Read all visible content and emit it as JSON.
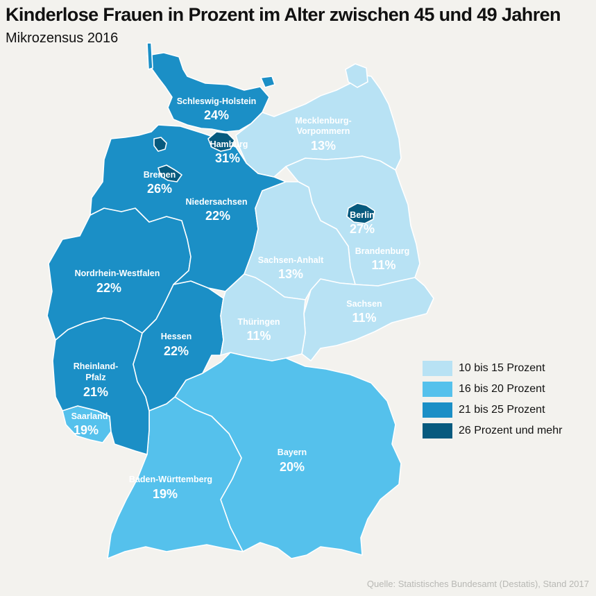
{
  "title": "Kinderlose Frauen in Prozent im Alter zwischen 45 und 49 Jahren",
  "subtitle": "Mikrozensus 2016",
  "source": "Quelle: Statistisches Bundesamt (Destatis), Stand 2017",
  "colors": {
    "cls1": "#b8e2f4",
    "cls2": "#55c1ec",
    "cls3": "#1b8fc6",
    "cls4": "#075a7e",
    "background": "#f3f2ee",
    "border": "#ffffff"
  },
  "legend": [
    {
      "label": "10 bis 15 Prozent",
      "color": "#b8e2f4"
    },
    {
      "label": "16 bis 20 Prozent",
      "color": "#55c1ec"
    },
    {
      "label": "21 bis 25 Prozent",
      "color": "#1b8fc6"
    },
    {
      "label": "26 Prozent und mehr",
      "color": "#075a7e"
    }
  ],
  "states": {
    "schleswig_holstein": {
      "name": "Schleswig-Holstein",
      "value": "24%",
      "percent": 24
    },
    "hamburg": {
      "name": "Hamburg",
      "value": "31%",
      "percent": 31
    },
    "mecklenburg_vorpommern": {
      "name_line1": "Mecklenburg-",
      "name_line2": "Vorpommern",
      "value": "13%",
      "percent": 13
    },
    "bremen": {
      "name": "Bremen",
      "value": "26%",
      "percent": 26
    },
    "niedersachsen": {
      "name": "Niedersachsen",
      "value": "22%",
      "percent": 22
    },
    "berlin": {
      "name": "Berlin",
      "value": "27%",
      "percent": 27
    },
    "brandenburg": {
      "name": "Brandenburg",
      "value": "11%",
      "percent": 11
    },
    "sachsen_anhalt": {
      "name": "Sachsen-Anhalt",
      "value": "13%",
      "percent": 13
    },
    "nordrhein_westfalen": {
      "name": "Nordrhein-Westfalen",
      "value": "22%",
      "percent": 22
    },
    "sachsen": {
      "name": "Sachsen",
      "value": "11%",
      "percent": 11
    },
    "thueringen": {
      "name": "Thüringen",
      "value": "11%",
      "percent": 11
    },
    "hessen": {
      "name": "Hessen",
      "value": "22%",
      "percent": 22
    },
    "rheinland_pfalz": {
      "name_line1": "Rheinland-",
      "name_line2": "Pfalz",
      "value": "21%",
      "percent": 21
    },
    "saarland": {
      "name": "Saarland",
      "value": "19%",
      "percent": 19
    },
    "bayern": {
      "name": "Bayern",
      "value": "20%",
      "percent": 20
    },
    "baden_wuerttemberg": {
      "name": "Baden-Württemberg",
      "value": "19%",
      "percent": 19
    }
  }
}
